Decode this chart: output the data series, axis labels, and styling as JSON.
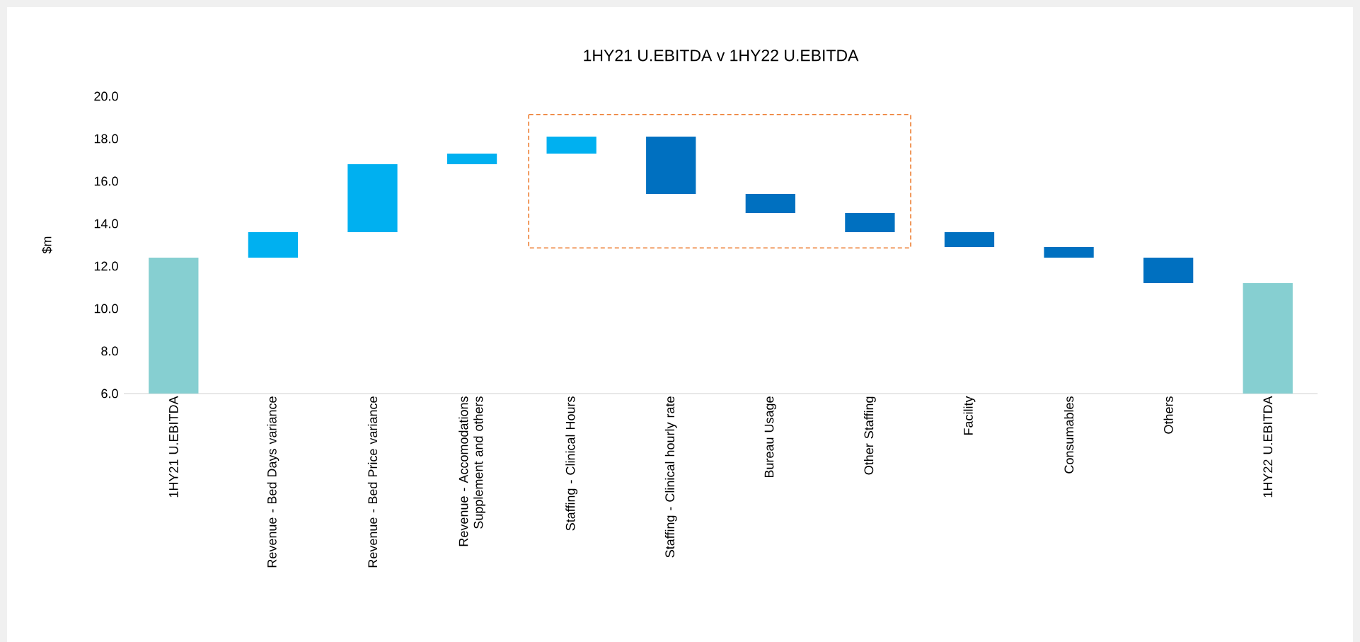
{
  "chart_data": {
    "type": "bar",
    "title": "1HY21 U.EBITDA v 1HY22 U.EBITDA",
    "ylabel": "$m",
    "categories": [
      "1HY21 U.EBITDA",
      "Revenue - Bed Days variance",
      "Revenue - Bed Price variance",
      "Revenue - Accomodations Supplement and others",
      "Staffing - Clinical Hours",
      "Staffing - Clinical hourly rate",
      "Bureau Usage",
      "Other Staffing",
      "Facility",
      "Consumables",
      "Others",
      "1HY22 U.EBITDA"
    ],
    "values": [
      12.4,
      1.2,
      3.2,
      0.5,
      0.8,
      -2.7,
      -0.9,
      -0.9,
      -0.7,
      -0.5,
      -1.2,
      11.2
    ],
    "base": [
      null,
      12.4,
      13.6,
      16.8,
      17.3,
      18.1,
      15.4,
      14.5,
      13.6,
      12.9,
      12.4,
      null
    ],
    "colors": [
      "#86cfd1",
      "#00b0f0",
      "#00b0f0",
      "#00b0f0",
      "#00b0f0",
      "#0070c0",
      "#0070c0",
      "#0070c0",
      "#0070c0",
      "#0070c0",
      "#0070c0",
      "#86cfd1"
    ],
    "ylim": [
      6,
      20
    ],
    "yticks": [
      {
        "value": 6,
        "label": "6.0"
      },
      {
        "value": 8,
        "label": "8.0"
      },
      {
        "value": 10,
        "label": "10.0"
      },
      {
        "value": 12,
        "label": "12.0"
      },
      {
        "value": 14,
        "label": "14.0"
      },
      {
        "value": 16,
        "label": "16.0"
      },
      {
        "value": 18,
        "label": "18.0"
      },
      {
        "value": 20,
        "label": "20.0"
      }
    ],
    "grid": false
  }
}
